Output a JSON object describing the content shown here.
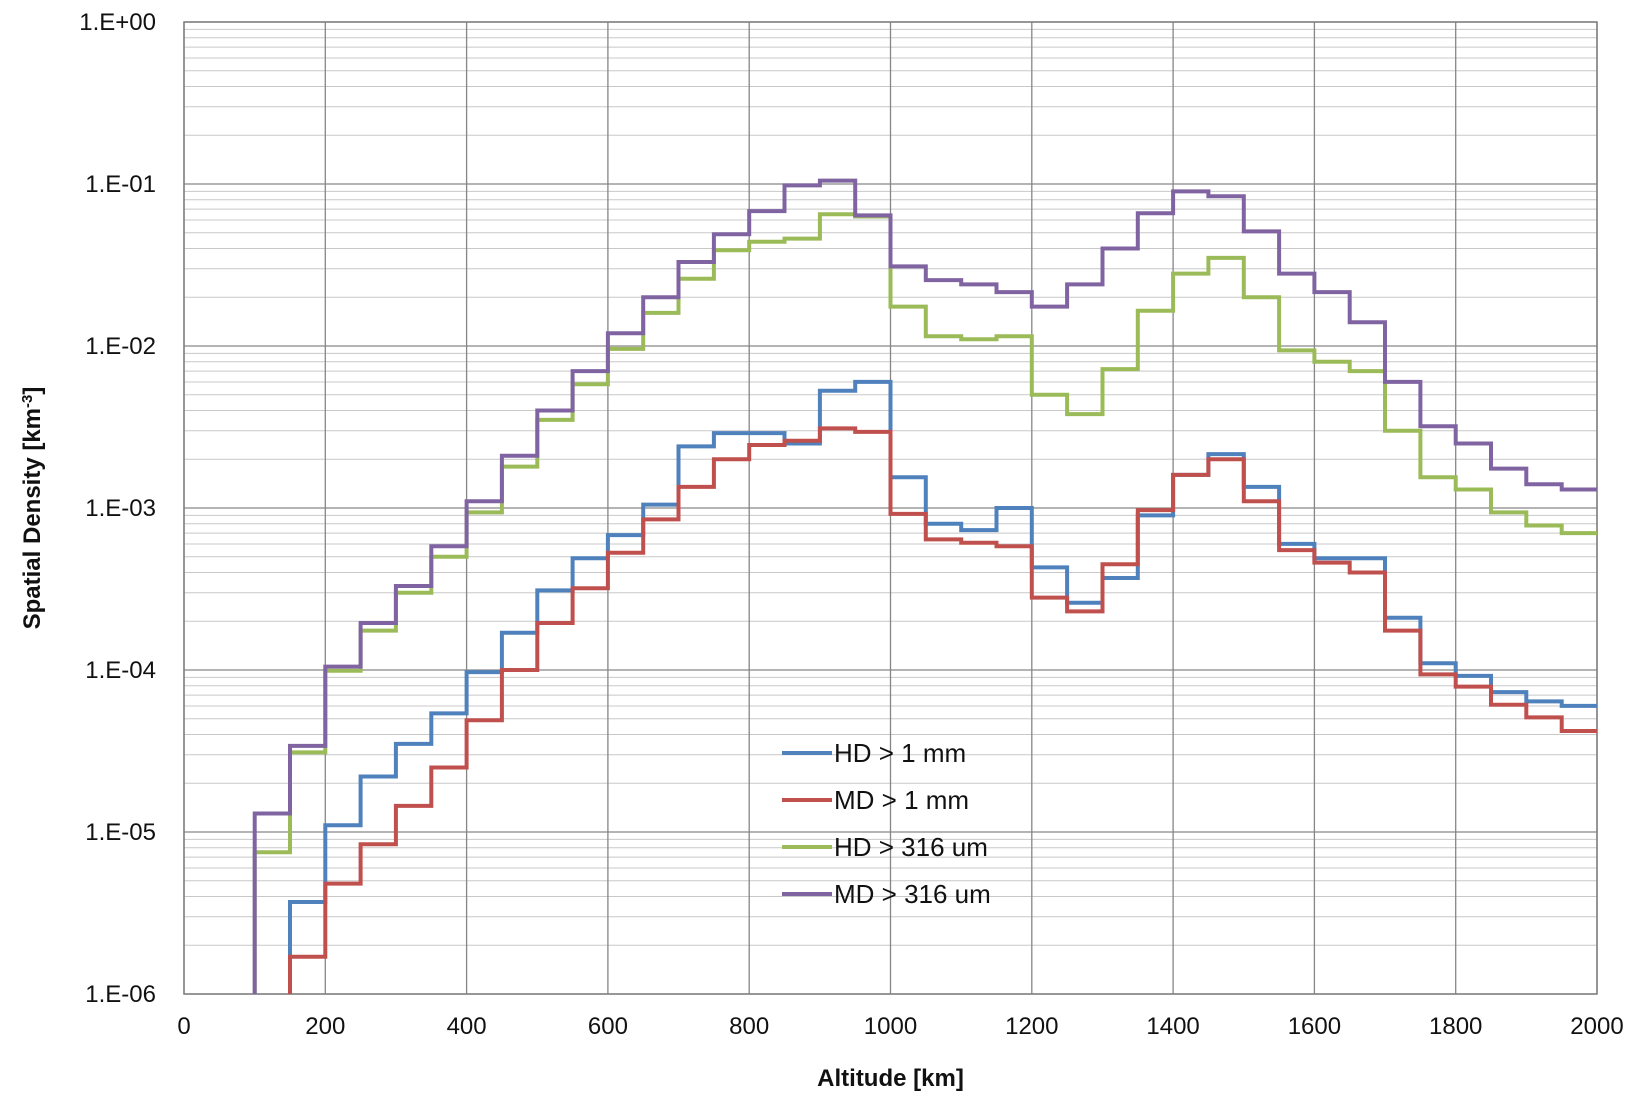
{
  "chart_data": {
    "type": "line",
    "step": true,
    "x_units": "km",
    "y_scale": "log",
    "xlim": [
      0,
      2000
    ],
    "ylim": [
      1e-06,
      1
    ],
    "xticks": [
      0,
      200,
      400,
      600,
      800,
      1000,
      1200,
      1400,
      1600,
      1800,
      2000
    ],
    "yticks": [
      1e-06,
      1e-05,
      0.0001,
      0.001,
      0.01,
      0.1,
      1
    ],
    "xtick_labels": [
      "0",
      "200",
      "400",
      "600",
      "800",
      "1000",
      "1200",
      "1400",
      "1600",
      "1800",
      "2000"
    ],
    "ytick_labels": [
      "1.E-06",
      "1.E-05",
      "1.E-04",
      "1.E-03",
      "1.E-02",
      "1.E-01",
      "1.E+00"
    ],
    "xlabel": "Altitude [km]",
    "ylabel_main": "Spatial Density [km",
    "ylabel_sup": "-3",
    "ylabel_end": "]",
    "grid": true,
    "legend_position": "lower-center",
    "bin_edges": [
      100,
      150,
      200,
      250,
      300,
      350,
      400,
      450,
      500,
      550,
      600,
      650,
      700,
      750,
      800,
      850,
      900,
      950,
      1000,
      1050,
      1100,
      1150,
      1200,
      1250,
      1300,
      1350,
      1400,
      1450,
      1500,
      1550,
      1600,
      1650,
      1700,
      1750,
      1800,
      1850,
      1900,
      1950,
      2000
    ],
    "series": [
      {
        "name": "HD > 1 mm",
        "color": "#4F81BD",
        "values": [
          null,
          3.7e-06,
          1.1e-05,
          2.2e-05,
          3.5e-05,
          5.4e-05,
          9.7e-05,
          0.00017,
          0.00031,
          0.00049,
          0.00068,
          0.00105,
          0.0024,
          0.0029,
          0.0029,
          0.0025,
          0.0053,
          0.006,
          0.00155,
          0.0008,
          0.00073,
          0.001,
          0.00043,
          0.00026,
          0.00037,
          0.0009,
          0.0016,
          0.00215,
          0.00135,
          0.0006,
          0.00049,
          0.00049,
          0.00021,
          0.00011,
          9.2e-05,
          7.3e-05,
          6.4e-05,
          6e-05
        ]
      },
      {
        "name": "MD > 1 mm",
        "color": "#C0504D",
        "values": [
          null,
          1.7e-06,
          4.8e-06,
          8.4e-06,
          1.45e-05,
          2.5e-05,
          4.9e-05,
          0.0001,
          0.000195,
          0.00032,
          0.00053,
          0.00085,
          0.00135,
          0.002,
          0.00245,
          0.0026,
          0.0031,
          0.00295,
          0.00092,
          0.00064,
          0.00061,
          0.00058,
          0.00028,
          0.00023,
          0.00045,
          0.00097,
          0.0016,
          0.002,
          0.0011,
          0.00055,
          0.00046,
          0.0004,
          0.000175,
          9.4e-05,
          7.9e-05,
          6.1e-05,
          5.1e-05,
          4.2e-05
        ]
      },
      {
        "name": "HD > 316 um",
        "color": "#9BBB59",
        "values": [
          7.5e-06,
          3.1e-05,
          9.9e-05,
          0.000175,
          0.0003,
          0.0005,
          0.00094,
          0.0018,
          0.0035,
          0.0058,
          0.0096,
          0.016,
          0.026,
          0.039,
          0.044,
          0.046,
          0.065,
          0.063,
          0.0175,
          0.0115,
          0.011,
          0.0115,
          0.005,
          0.0038,
          0.0072,
          0.0165,
          0.028,
          0.035,
          0.02,
          0.0094,
          0.008,
          0.007,
          0.003,
          0.00155,
          0.0013,
          0.00094,
          0.00078,
          0.0007
        ]
      },
      {
        "name": "MD > 316 um",
        "color": "#8064A2",
        "values": [
          1.3e-05,
          3.4e-05,
          0.000105,
          0.000195,
          0.00033,
          0.00058,
          0.0011,
          0.0021,
          0.004,
          0.007,
          0.012,
          0.02,
          0.033,
          0.049,
          0.068,
          0.098,
          0.105,
          0.064,
          0.031,
          0.0255,
          0.024,
          0.0215,
          0.0175,
          0.024,
          0.04,
          0.066,
          0.09,
          0.084,
          0.051,
          0.028,
          0.0215,
          0.014,
          0.006,
          0.0032,
          0.0025,
          0.00175,
          0.0014,
          0.0013
        ]
      }
    ]
  }
}
